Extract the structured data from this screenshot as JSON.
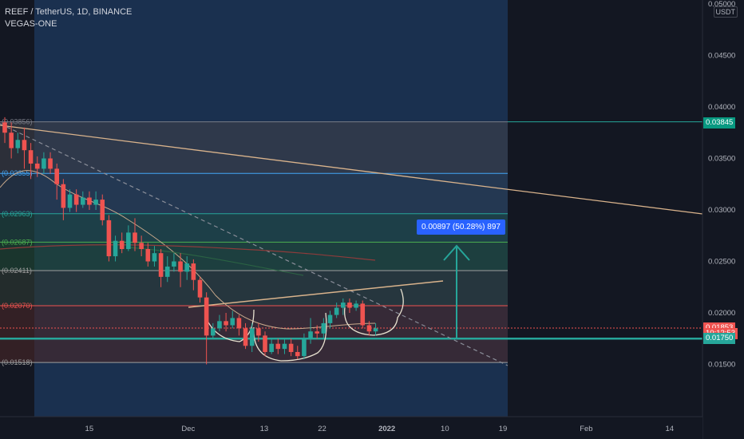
{
  "header": {
    "symbol_line": "REEF / TetherUS, 1D, BINANCE",
    "indicator": "VEGAS-ONE"
  },
  "currency_badge": "USDT",
  "price_axis": {
    "ticks": [
      "0.05000",
      "0.04500",
      "0.04000",
      "0.03500",
      "0.03000",
      "0.02500",
      "0.02000",
      "0.01500"
    ],
    "tick_values": [
      0.05,
      0.045,
      0.04,
      0.035,
      0.03,
      0.025,
      0.02,
      0.015
    ],
    "tags": [
      {
        "label": "0.03845",
        "value": 0.03845,
        "color": "#089981"
      },
      {
        "label": "0.01853",
        "value": 0.01853,
        "color": "#ef5350"
      },
      {
        "label": "10:12:53",
        "value": 0.01802,
        "color": "#ef5350"
      },
      {
        "label": "0.01750",
        "value": 0.0175,
        "color": "#26a69a"
      }
    ]
  },
  "time_axis": {
    "labels": [
      "15",
      "Dec",
      "13",
      "22",
      "2022",
      "10",
      "19",
      "Feb",
      "14"
    ],
    "label_pos": [
      0.12,
      0.253,
      0.355,
      0.433,
      0.52,
      0.598,
      0.676,
      0.788,
      0.9
    ]
  },
  "fib_levels": [
    {
      "label": "(0.03856)",
      "value": 0.03856,
      "color": "#787b86"
    },
    {
      "label": "(0.03355)",
      "value": 0.03355,
      "color": "#42a5f5"
    },
    {
      "label": "(0.02963)",
      "value": 0.02963,
      "color": "#26a69a"
    },
    {
      "label": "(0.02687)",
      "value": 0.02687,
      "color": "#4caf50"
    },
    {
      "label": "(0.02411)",
      "value": 0.02411,
      "color": "#9e9e9e"
    },
    {
      "label": "(0.02070)",
      "value": 0.0207,
      "color": "#ef5350"
    },
    {
      "label": "(0.01518)",
      "value": 0.01518,
      "color": "#9e9e9e"
    }
  ],
  "measure_label": "0.00897 (50.28%) 897",
  "colors": {
    "background": "#131722",
    "up": "#26a69a",
    "down": "#ef5350",
    "highlight": "#1e3a5f",
    "trendline": "#d9b38c",
    "arrow": "#26a69a",
    "support": "#26a69a"
  }
}
